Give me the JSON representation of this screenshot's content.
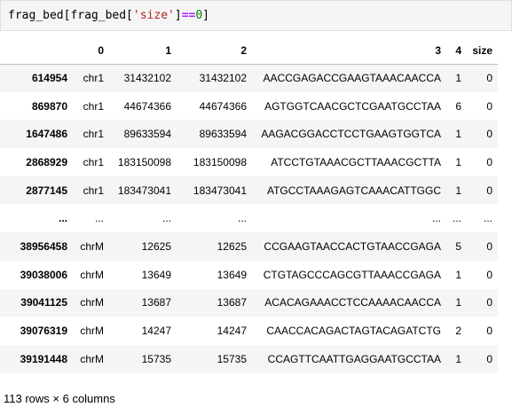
{
  "code": {
    "text_parts": [
      {
        "t": "frag_bed[frag_bed[",
        "c": "plain"
      },
      {
        "t": "'size'",
        "c": "str"
      },
      {
        "t": "]",
        "c": "plain"
      },
      {
        "t": "==",
        "c": "op"
      },
      {
        "t": "0",
        "c": "num"
      },
      {
        "t": "]",
        "c": "plain"
      }
    ]
  },
  "table": {
    "columns": [
      "",
      "0",
      "1",
      "2",
      "3",
      "4",
      "size"
    ],
    "rows": [
      {
        "index": "614954",
        "cells": [
          "chr1",
          "31432102",
          "31432102",
          "AACCGAGACCGAAGTAAACAACCA",
          "1",
          "0"
        ]
      },
      {
        "index": "869870",
        "cells": [
          "chr1",
          "44674366",
          "44674366",
          "AGTGGTCAACGCTCGAATGCCTAA",
          "6",
          "0"
        ]
      },
      {
        "index": "1647486",
        "cells": [
          "chr1",
          "89633594",
          "89633594",
          "AAGACGGACCTCCTGAAGTGGTCA",
          "1",
          "0"
        ]
      },
      {
        "index": "2868929",
        "cells": [
          "chr1",
          "183150098",
          "183150098",
          "ATCCTGTAAACGCTTAAACGCTTA",
          "1",
          "0"
        ]
      },
      {
        "index": "2877145",
        "cells": [
          "chr1",
          "183473041",
          "183473041",
          "ATGCCTAAAGAGTCAAACATTGGC",
          "1",
          "0"
        ]
      },
      {
        "index": "...",
        "cells": [
          "...",
          "...",
          "...",
          "...",
          "...",
          "..."
        ]
      },
      {
        "index": "38956458",
        "cells": [
          "chrM",
          "12625",
          "12625",
          "CCGAAGTAACCACTGTAACCGAGA",
          "5",
          "0"
        ]
      },
      {
        "index": "39038006",
        "cells": [
          "chrM",
          "13649",
          "13649",
          "CTGTAGCCCAGCGTTAAACCGAGA",
          "1",
          "0"
        ]
      },
      {
        "index": "39041125",
        "cells": [
          "chrM",
          "13687",
          "13687",
          "ACACAGAAACCTCCAAAACAACCA",
          "1",
          "0"
        ]
      },
      {
        "index": "39076319",
        "cells": [
          "chrM",
          "14247",
          "14247",
          "CAACCACAGACTAGTACAGATCTG",
          "2",
          "0"
        ]
      },
      {
        "index": "39191448",
        "cells": [
          "chrM",
          "15735",
          "15735",
          "CCAGTTCAATTGAGGAATGCCTAA",
          "1",
          "0"
        ]
      }
    ]
  },
  "footer": {
    "summary": "113 rows × 6 columns"
  }
}
